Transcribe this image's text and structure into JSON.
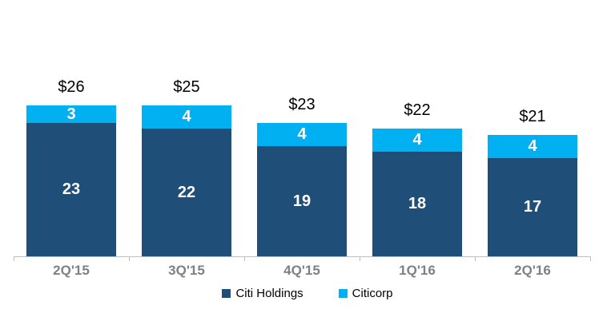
{
  "chart_data": {
    "type": "bar",
    "stacked": true,
    "title": "",
    "categories": [
      "2Q'15",
      "3Q'15",
      "4Q'15",
      "1Q'16",
      "2Q'16"
    ],
    "series": [
      {
        "name": "Citi Holdings",
        "color": "#1F4E79",
        "values": [
          23,
          22,
          19,
          18,
          17
        ]
      },
      {
        "name": "Citicorp",
        "color": "#00B0F0",
        "values": [
          3,
          4,
          4,
          4,
          4
        ]
      }
    ],
    "totals": [
      26,
      25,
      23,
      22,
      21
    ],
    "total_labels": [
      "$26",
      "$25",
      "$23",
      "$22",
      "$21"
    ],
    "ylim": [
      0,
      28
    ],
    "grid": false,
    "legend_position": "bottom",
    "axis_color": "#BFBFBF",
    "x_label_color": "#808080",
    "total_label_color": "#000000",
    "segment_value_color": "#FFFFFF"
  }
}
